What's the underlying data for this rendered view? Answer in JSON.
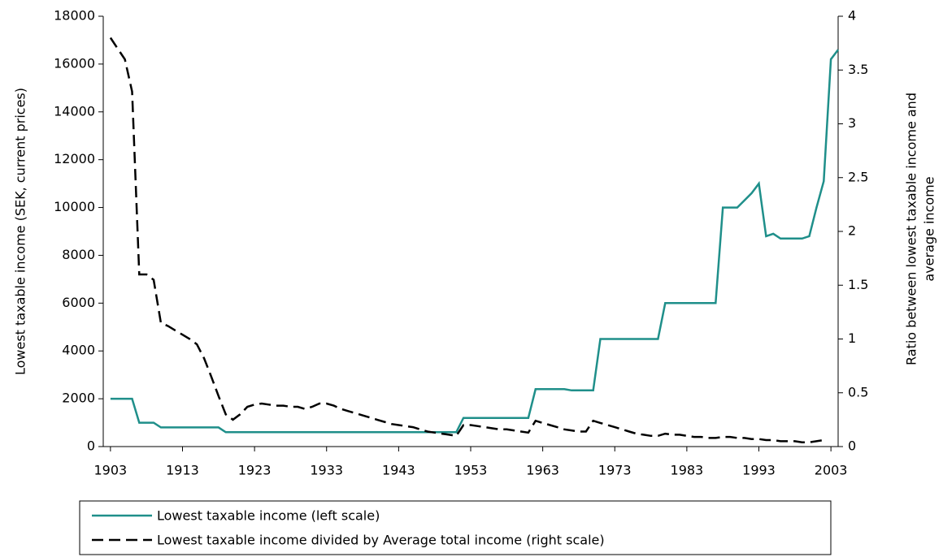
{
  "chart_data": {
    "type": "line",
    "ylabel": "Lowest taxable income (SEK, current prices)",
    "y2label": [
      "Ratio between lowest taxable income and",
      "average income"
    ],
    "x": [
      1903,
      1904,
      1905,
      1906,
      1907,
      1908,
      1909,
      1910,
      1911,
      1912,
      1913,
      1914,
      1915,
      1916,
      1917,
      1918,
      1919,
      1920,
      1921,
      1922,
      1923,
      1924,
      1925,
      1926,
      1927,
      1928,
      1929,
      1930,
      1931,
      1932,
      1933,
      1934,
      1935,
      1936,
      1937,
      1938,
      1939,
      1940,
      1941,
      1942,
      1943,
      1944,
      1945,
      1946,
      1947,
      1948,
      1949,
      1950,
      1951,
      1952,
      1953,
      1954,
      1955,
      1956,
      1957,
      1958,
      1959,
      1960,
      1961,
      1962,
      1963,
      1964,
      1965,
      1966,
      1967,
      1968,
      1969,
      1970,
      1971,
      1972,
      1973,
      1974,
      1975,
      1976,
      1977,
      1978,
      1979,
      1980,
      1981,
      1982,
      1983,
      1984,
      1985,
      1986,
      1987,
      1988,
      1989,
      1990,
      1991,
      1992,
      1993,
      1994,
      1995,
      1996,
      1997,
      1998,
      1999,
      2000,
      2001,
      2002,
      2003,
      2004
    ],
    "series": [
      {
        "name": "Lowest taxable income (left scale)",
        "color": "#1f8f8a",
        "dashed": false,
        "values": [
          2000,
          2000,
          2000,
          2000,
          1000,
          1000,
          1000,
          800,
          800,
          800,
          800,
          800,
          800,
          800,
          800,
          800,
          600,
          600,
          600,
          600,
          600,
          600,
          600,
          600,
          600,
          600,
          600,
          600,
          600,
          600,
          600,
          600,
          600,
          600,
          600,
          600,
          600,
          600,
          600,
          600,
          600,
          600,
          600,
          600,
          600,
          600,
          600,
          600,
          600,
          1200,
          1200,
          1200,
          1200,
          1200,
          1200,
          1200,
          1200,
          1200,
          1200,
          2400,
          2400,
          2400,
          2400,
          2400,
          2350,
          2350,
          2350,
          2350,
          4500,
          4500,
          4500,
          4500,
          4500,
          4500,
          4500,
          4500,
          4500,
          6000,
          6000,
          6000,
          6000,
          6000,
          6000,
          6000,
          6000,
          10000,
          10000,
          10000,
          10300,
          10600,
          11000,
          8800,
          8900,
          8700,
          8700,
          8700,
          8700,
          8800,
          10000,
          11100,
          16200,
          16600
        ]
      },
      {
        "name": "Lowest taxable income divided by Average total income (right scale)",
        "color": "#000000",
        "dashed": true,
        "axis": "y2",
        "values": [
          3.8,
          3.7,
          3.6,
          3.3,
          1.6,
          1.6,
          1.55,
          1.15,
          1.12,
          1.08,
          1.04,
          1.0,
          0.95,
          0.82,
          0.65,
          0.47,
          0.3,
          0.25,
          0.3,
          0.37,
          0.39,
          0.4,
          0.39,
          0.38,
          0.38,
          0.37,
          0.37,
          0.35,
          0.37,
          0.4,
          0.4,
          0.38,
          0.35,
          0.33,
          0.31,
          0.29,
          0.27,
          0.25,
          0.23,
          0.21,
          0.2,
          0.19,
          0.18,
          0.16,
          0.14,
          0.13,
          0.12,
          0.11,
          0.1,
          0.2,
          0.2,
          0.19,
          0.18,
          0.17,
          0.16,
          0.16,
          0.15,
          0.14,
          0.13,
          0.24,
          0.22,
          0.2,
          0.18,
          0.16,
          0.15,
          0.14,
          0.14,
          0.24,
          0.22,
          0.2,
          0.18,
          0.16,
          0.14,
          0.12,
          0.11,
          0.1,
          0.1,
          0.12,
          0.11,
          0.11,
          0.1,
          0.09,
          0.09,
          0.08,
          0.08,
          0.09,
          0.09,
          0.08,
          0.08,
          0.07,
          0.07,
          0.06,
          0.06,
          0.05,
          0.05,
          0.05,
          0.04,
          0.04,
          0.05,
          0.06,
          null,
          null
        ]
      }
    ],
    "xlim": [
      1902,
      2004
    ],
    "xticks": [
      1903,
      1913,
      1923,
      1933,
      1943,
      1953,
      1963,
      1973,
      1983,
      1993,
      2003
    ],
    "ylim": [
      0,
      18000
    ],
    "yticks": [
      0,
      2000,
      4000,
      6000,
      8000,
      10000,
      12000,
      14000,
      16000,
      18000
    ],
    "y2lim": [
      0,
      4
    ],
    "y2ticks": [
      0,
      0.5,
      1,
      1.5,
      2,
      2.5,
      3,
      3.5,
      4
    ],
    "legend": "bottom"
  }
}
